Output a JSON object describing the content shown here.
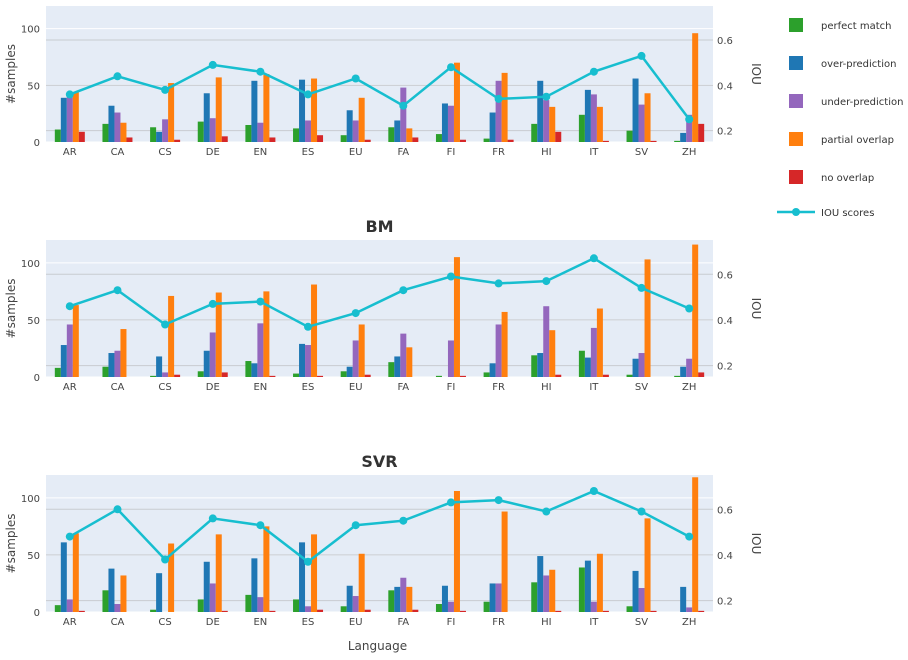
{
  "legend": {
    "perfect": "perfect match",
    "over": "over-prediction",
    "under": "under-prediction",
    "partial": "partial overlap",
    "none": "no overlap",
    "iou": "IOU scores"
  },
  "colors": {
    "perfect": "#2ca02c",
    "over": "#1f77b4",
    "under": "#9467bd",
    "partial": "#ff7f0e",
    "none": "#d62728",
    "iou": "#17becf",
    "plot_bg": "#e5ecf6"
  },
  "chart_data": [
    {
      "type": "bar",
      "title": "",
      "xlabel": "",
      "ylabel": "#samples",
      "y2label": "IOU",
      "ylim": [
        0,
        120
      ],
      "y2lim": [
        0.15,
        0.75
      ],
      "categories": [
        "AR",
        "CA",
        "CS",
        "DE",
        "EN",
        "ES",
        "EU",
        "FA",
        "FI",
        "FR",
        "HI",
        "IT",
        "SV",
        "ZH"
      ],
      "series": [
        {
          "key": "perfect",
          "values": [
            11,
            16,
            13,
            18,
            15,
            12,
            6,
            13,
            7,
            3,
            16,
            24,
            10,
            1
          ]
        },
        {
          "key": "over",
          "values": [
            39,
            32,
            9,
            43,
            54,
            55,
            28,
            19,
            34,
            26,
            54,
            46,
            56,
            8
          ]
        },
        {
          "key": "under",
          "values": [
            42,
            26,
            20,
            21,
            17,
            19,
            19,
            48,
            32,
            54,
            37,
            42,
            33,
            24
          ]
        },
        {
          "key": "partial",
          "values": [
            44,
            17,
            52,
            57,
            60,
            56,
            39,
            12,
            70,
            61,
            31,
            31,
            43,
            96
          ]
        },
        {
          "key": "none",
          "values": [
            9,
            4,
            2,
            5,
            4,
            6,
            2,
            4,
            2,
            2,
            9,
            1,
            1,
            16
          ]
        }
      ],
      "iou": [
        0.36,
        0.44,
        0.38,
        0.49,
        0.46,
        0.36,
        0.43,
        0.31,
        0.48,
        0.34,
        0.35,
        0.46,
        0.53,
        0.25
      ]
    },
    {
      "type": "bar",
      "title": "BM",
      "xlabel": "",
      "ylabel": "#samples",
      "y2label": "IOU",
      "ylim": [
        0,
        120
      ],
      "y2lim": [
        0.15,
        0.75
      ],
      "categories": [
        "AR",
        "CA",
        "CS",
        "DE",
        "EN",
        "ES",
        "EU",
        "FA",
        "FI",
        "FR",
        "HI",
        "IT",
        "SV",
        "ZH"
      ],
      "series": [
        {
          "key": "perfect",
          "values": [
            8,
            9,
            1,
            5,
            14,
            3,
            5,
            13,
            1,
            4,
            19,
            23,
            2,
            1
          ]
        },
        {
          "key": "over",
          "values": [
            28,
            21,
            18,
            23,
            12,
            29,
            9,
            18,
            0,
            12,
            21,
            17,
            16,
            9
          ]
        },
        {
          "key": "under",
          "values": [
            46,
            23,
            4,
            39,
            47,
            28,
            32,
            38,
            32,
            46,
            62,
            43,
            21,
            16
          ]
        },
        {
          "key": "partial",
          "values": [
            63,
            42,
            71,
            74,
            75,
            81,
            46,
            26,
            105,
            57,
            41,
            60,
            103,
            116
          ]
        },
        {
          "key": "none",
          "values": [
            0,
            0,
            2,
            4,
            1,
            1,
            2,
            0,
            1,
            0,
            2,
            2,
            0,
            4
          ]
        }
      ],
      "iou": [
        0.46,
        0.53,
        0.38,
        0.47,
        0.48,
        0.37,
        0.43,
        0.53,
        0.59,
        0.56,
        0.57,
        0.67,
        0.54,
        0.45
      ]
    },
    {
      "type": "bar",
      "title": "SVR",
      "xlabel": "Language",
      "ylabel": "#samples",
      "y2label": "IOU",
      "ylim": [
        0,
        120
      ],
      "y2lim": [
        0.15,
        0.75
      ],
      "categories": [
        "AR",
        "CA",
        "CS",
        "DE",
        "EN",
        "ES",
        "EU",
        "FA",
        "FI",
        "FR",
        "HI",
        "IT",
        "SV",
        "ZH"
      ],
      "series": [
        {
          "key": "perfect",
          "values": [
            6,
            19,
            2,
            11,
            15,
            11,
            5,
            19,
            7,
            9,
            26,
            39,
            5,
            0
          ]
        },
        {
          "key": "over",
          "values": [
            61,
            38,
            34,
            44,
            47,
            61,
            23,
            22,
            23,
            25,
            49,
            45,
            36,
            22
          ]
        },
        {
          "key": "under",
          "values": [
            11,
            7,
            0,
            25,
            13,
            5,
            14,
            30,
            9,
            25,
            32,
            9,
            21,
            4
          ]
        },
        {
          "key": "partial",
          "values": [
            69,
            32,
            60,
            68,
            75,
            68,
            51,
            22,
            106,
            88,
            37,
            51,
            82,
            118
          ]
        },
        {
          "key": "none",
          "values": [
            1,
            0,
            0,
            1,
            1,
            2,
            2,
            2,
            1,
            0,
            1,
            1,
            1,
            1
          ]
        }
      ],
      "iou": [
        0.48,
        0.6,
        0.38,
        0.56,
        0.53,
        0.37,
        0.53,
        0.55,
        0.63,
        0.64,
        0.59,
        0.68,
        0.59,
        0.48
      ]
    }
  ]
}
